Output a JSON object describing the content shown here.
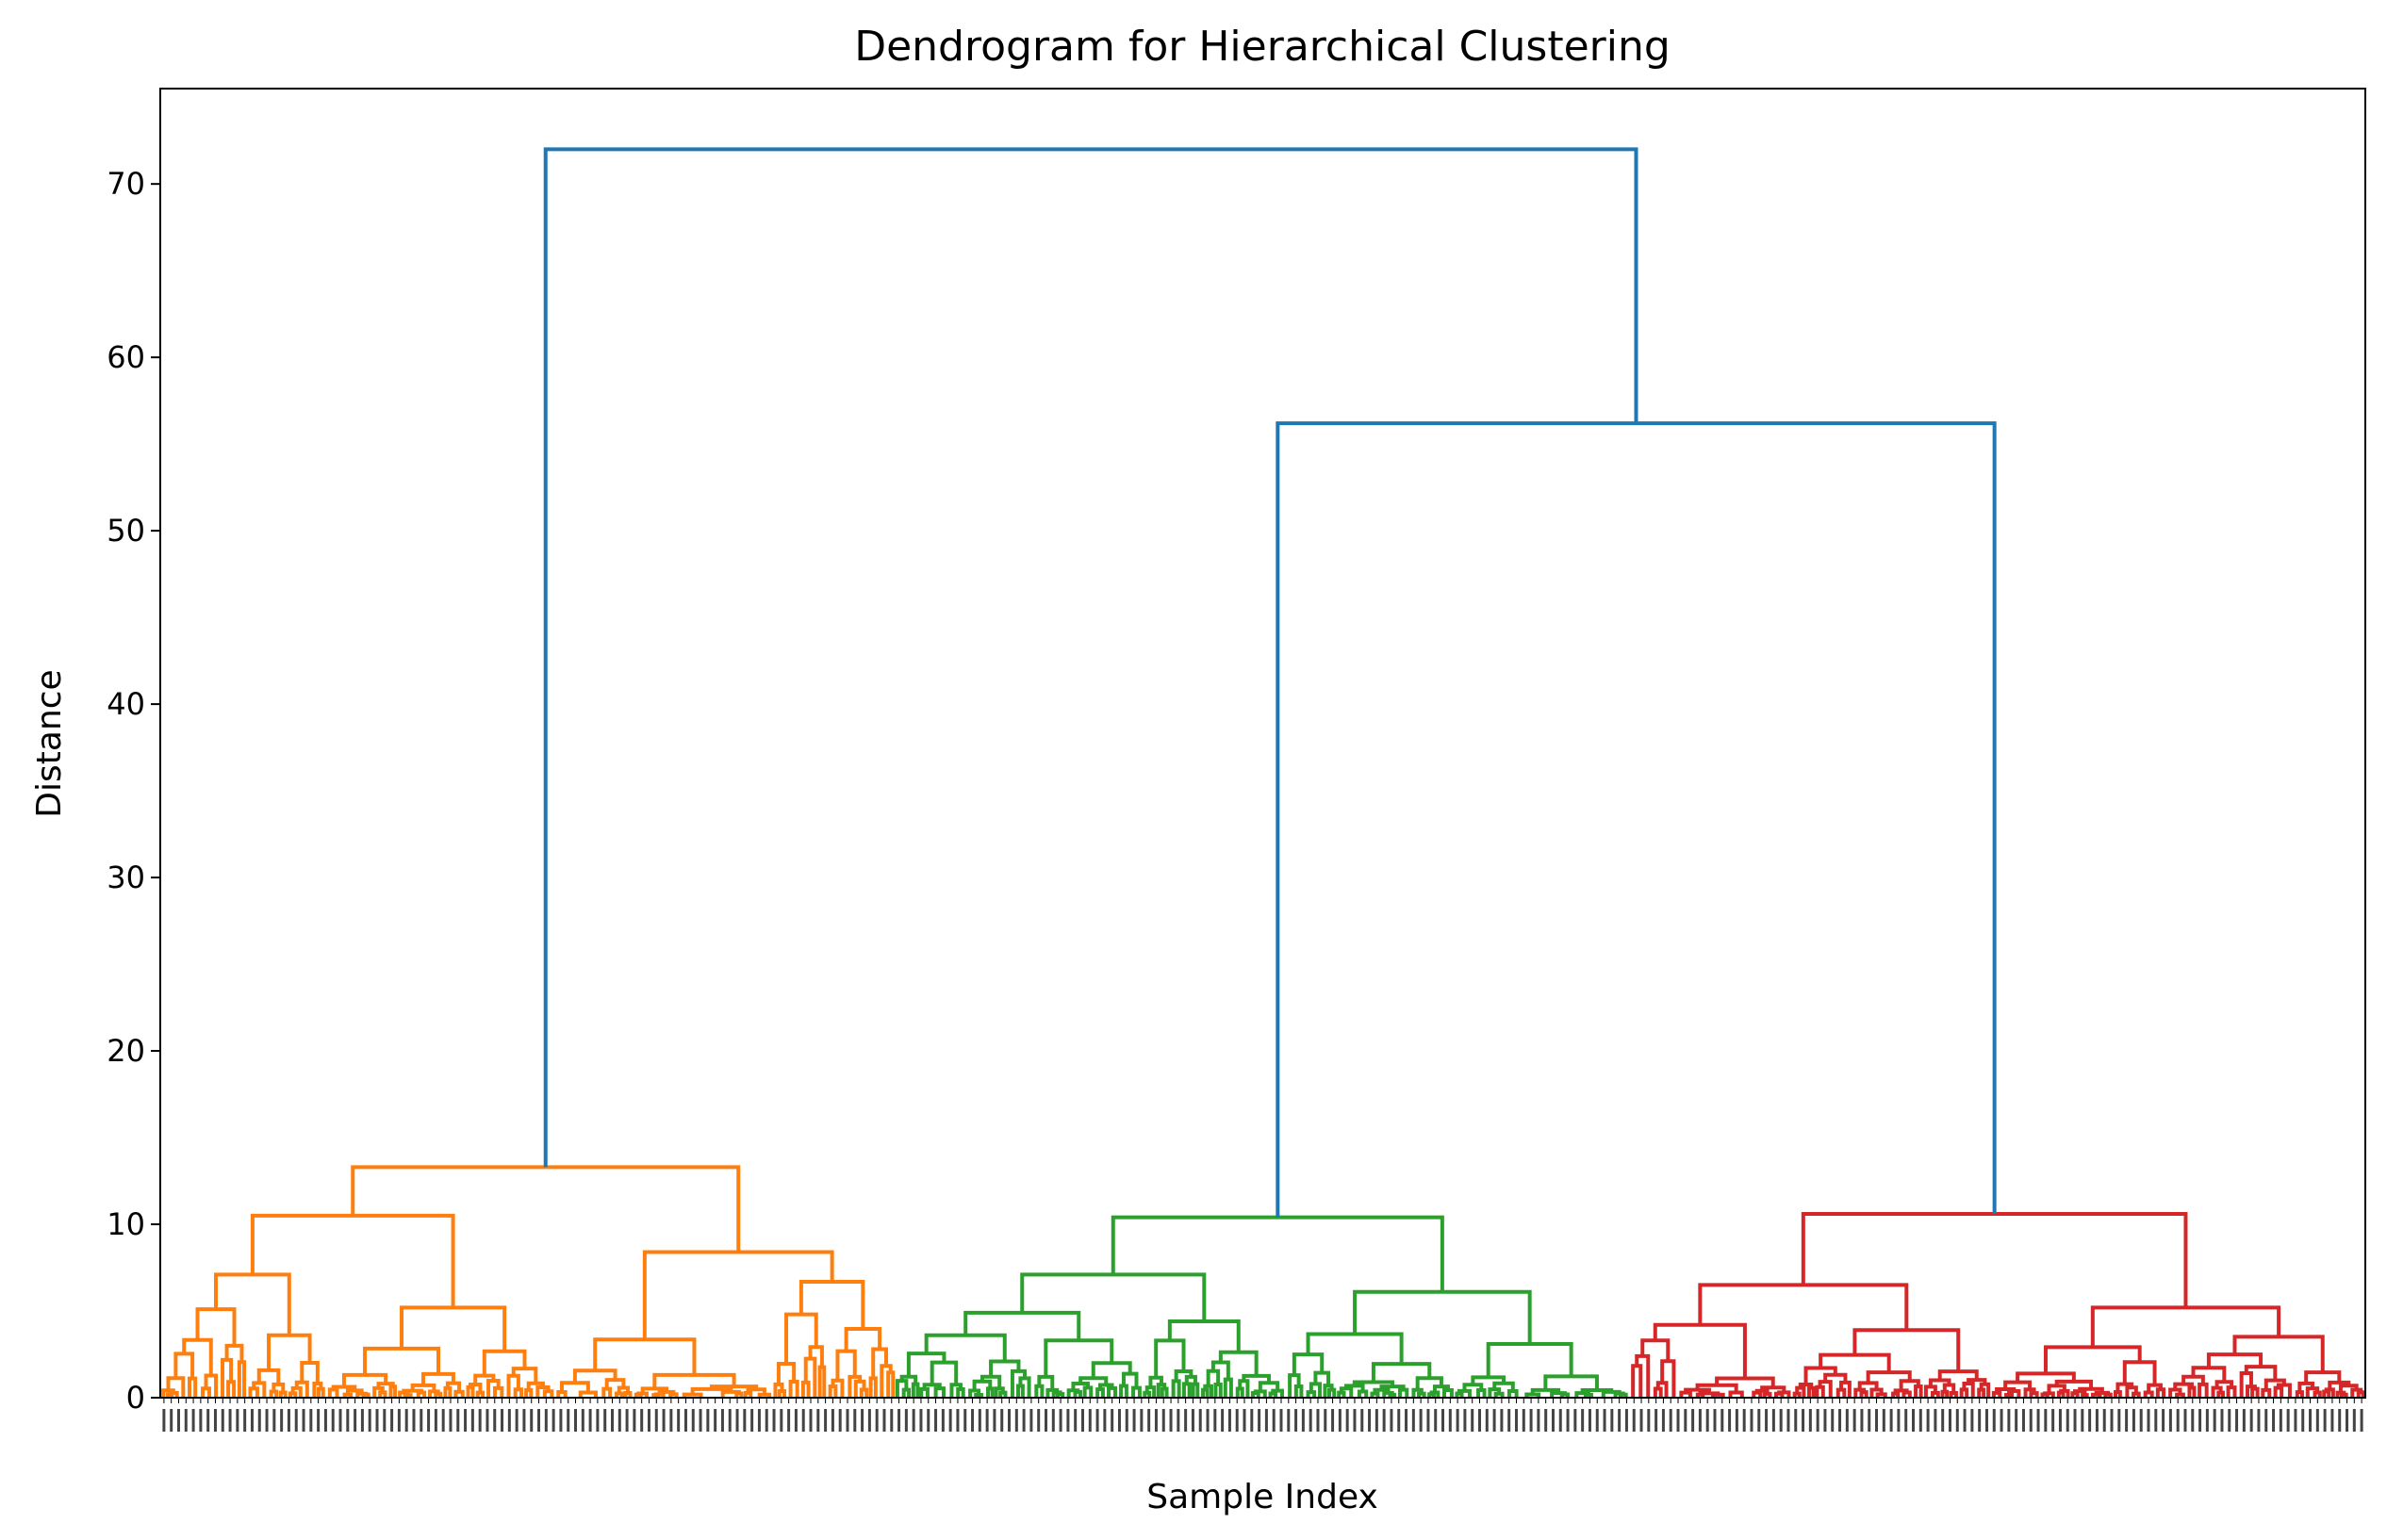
{
  "chart_data": {
    "type": "dendrogram",
    "title": "Dendrogram for Hierarchical Clustering",
    "xlabel": "Sample Index",
    "ylabel": "Distance",
    "ylim": [
      0,
      75.5
    ],
    "yticks": [
      0,
      10,
      20,
      30,
      40,
      50,
      60,
      70
    ],
    "grid": false,
    "legend": "none",
    "link_color_above_threshold": "#1f77b4",
    "clusters": [
      {
        "color": "#ff7f0e",
        "leaf_share": 0.333,
        "root_height": 13.3
      },
      {
        "color": "#2ca02c",
        "leaf_share": 0.333,
        "root_height": 10.4
      },
      {
        "color": "#d62728",
        "leaf_share": 0.334,
        "root_height": 10.6
      }
    ],
    "top_merges": [
      {
        "children": [
          "cluster-green",
          "cluster-red"
        ],
        "height": 56.2
      },
      {
        "children": [
          "cluster-orange",
          "merge-green-red"
        ],
        "height": 72.0
      }
    ],
    "major_subcluster_merges": [
      {
        "cluster": "orange",
        "heights": [
          13.3,
          10.5,
          8.4,
          7.1,
          5.2,
          5.1,
          3.6
        ]
      },
      {
        "cluster": "green",
        "heights": [
          10.4,
          7.1,
          6.1,
          4.9,
          4.4,
          3.6,
          3.3
        ]
      },
      {
        "cluster": "red",
        "heights": [
          10.6,
          6.5,
          5.2,
          4.2,
          3.9,
          3.3
        ]
      }
    ]
  }
}
